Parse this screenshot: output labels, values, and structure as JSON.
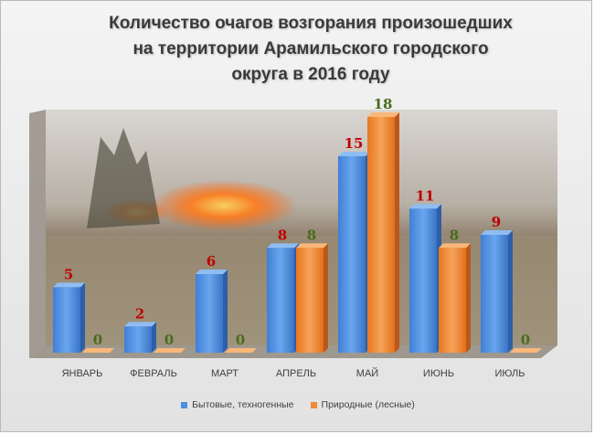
{
  "chart_data": {
    "type": "bar",
    "title": "Количество очагов возгорания произошедших\nна территории Арамильского городского\nокруга в 2016 году",
    "categories": [
      "ЯНВАРЬ",
      "ФЕВРАЛЬ",
      "МАРТ",
      "АПРЕЛЬ",
      "МАЙ",
      "ИЮНЬ",
      "ИЮЛЬ"
    ],
    "series": [
      {
        "name": "Бытовые, техногенные",
        "values": [
          5,
          2,
          6,
          8,
          15,
          11,
          9
        ],
        "color": "#4f8fdc",
        "label_color": "#c00000"
      },
      {
        "name": "Природные (лесные)",
        "values": [
          0,
          0,
          0,
          8,
          18,
          8,
          0
        ],
        "color": "#f08a35",
        "label_color": "#4a6b1f"
      }
    ],
    "ylim": [
      0,
      18
    ],
    "grid": false,
    "legend_position": "bottom",
    "background": "photo of a grass fire"
  }
}
